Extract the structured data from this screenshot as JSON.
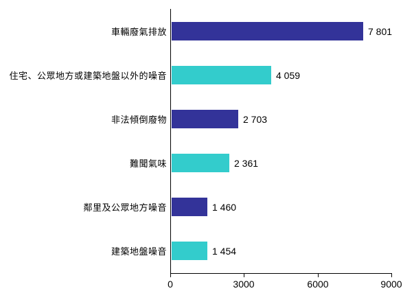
{
  "chart_data": {
    "type": "bar",
    "orientation": "horizontal",
    "title": "",
    "categories": [
      "車輛廢氣排放",
      "住宅、公眾地方或建築地盤以外的噪音",
      "非法傾倒廢物",
      "難聞氣味",
      "鄰里及公眾地方噪音",
      "建築地盤噪音"
    ],
    "values": [
      7801,
      4059,
      2703,
      2361,
      1460,
      1454
    ],
    "value_labels": [
      "7 801",
      "4 059",
      "2 703",
      "2 361",
      "1 460",
      "1 454"
    ],
    "bar_colors": [
      "#333399",
      "#33CCCC",
      "#333399",
      "#33CCCC",
      "#333399",
      "#33CCCC"
    ],
    "colors": {
      "indigo": "#333399",
      "turquoise": "#33CCCC",
      "axis": "#000000",
      "text": "#000000",
      "background": "#FFFFFF"
    },
    "xlim": [
      0,
      9000
    ],
    "x_ticks": [
      0,
      3000,
      6000,
      9000
    ],
    "x_tick_labels": [
      "0",
      "3000",
      "6000",
      "9000"
    ],
    "xlabel": "",
    "ylabel": "",
    "grid": false,
    "legend": "none"
  }
}
